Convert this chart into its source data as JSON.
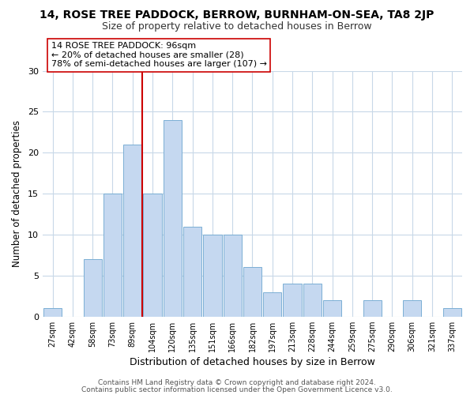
{
  "title1": "14, ROSE TREE PADDOCK, BERROW, BURNHAM-ON-SEA, TA8 2JP",
  "title2": "Size of property relative to detached houses in Berrow",
  "xlabel": "Distribution of detached houses by size in Berrow",
  "ylabel": "Number of detached properties",
  "bar_labels": [
    "27sqm",
    "42sqm",
    "58sqm",
    "73sqm",
    "89sqm",
    "104sqm",
    "120sqm",
    "135sqm",
    "151sqm",
    "166sqm",
    "182sqm",
    "197sqm",
    "213sqm",
    "228sqm",
    "244sqm",
    "259sqm",
    "275sqm",
    "290sqm",
    "306sqm",
    "321sqm",
    "337sqm"
  ],
  "bar_values": [
    1,
    0,
    7,
    15,
    21,
    15,
    24,
    11,
    10,
    10,
    6,
    3,
    4,
    4,
    2,
    0,
    2,
    0,
    2,
    0,
    1
  ],
  "bar_color": "#c5d8f0",
  "bar_edge_color": "#7bafd4",
  "vline_x": 4.5,
  "vline_color": "#cc0000",
  "annotation_line1": "14 ROSE TREE PADDOCK: 96sqm",
  "annotation_line2": "← 20% of detached houses are smaller (28)",
  "annotation_line3": "78% of semi-detached houses are larger (107) →",
  "annotation_box_color": "#ffffff",
  "annotation_box_edge": "#cc0000",
  "ylim": [
    0,
    30
  ],
  "yticks": [
    0,
    5,
    10,
    15,
    20,
    25,
    30
  ],
  "footer1": "Contains HM Land Registry data © Crown copyright and database right 2024.",
  "footer2": "Contains public sector information licensed under the Open Government Licence v3.0.",
  "bg_color": "#ffffff",
  "grid_color": "#c8d8e8",
  "title1_fontsize": 10,
  "title2_fontsize": 9,
  "xlabel_fontsize": 9,
  "ylabel_fontsize": 8.5,
  "annotation_fontsize": 8,
  "footer_fontsize": 6.5
}
